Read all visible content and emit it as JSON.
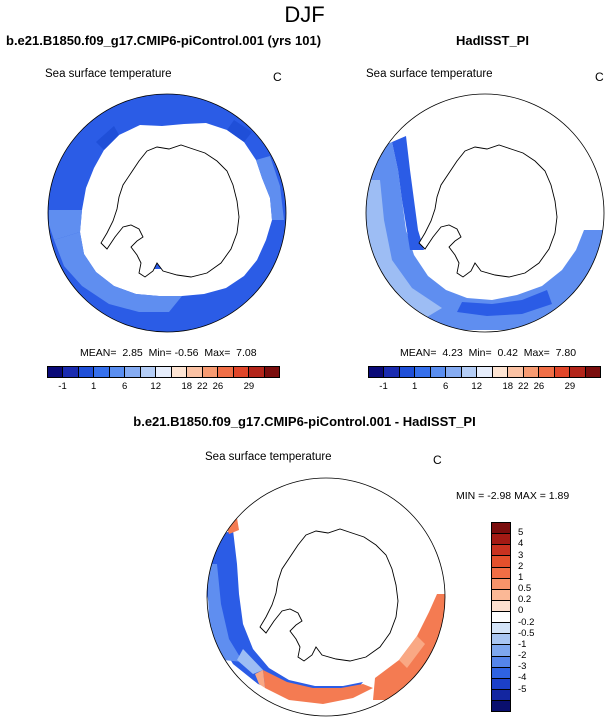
{
  "title": "DJF",
  "panels": {
    "model": {
      "title": "b.e21.B1850.f09_g17.CMIP6-piControl.001 (yrs 101)",
      "variable": "Sea surface temperature",
      "units": "C",
      "stats": {
        "mean_label": "MEAN=",
        "mean": "2.85",
        "min_label": "Min=",
        "min": "-0.56",
        "max_label": "Max=",
        "max": "7.08"
      }
    },
    "obs": {
      "title": "HadISST_PI",
      "variable": "Sea surface temperature",
      "units": "C",
      "stats": {
        "mean_label": "MEAN=",
        "mean": "4.23",
        "min_label": "Min=",
        "min": "0.42",
        "max_label": "Max=",
        "max": "7.80"
      }
    },
    "diff": {
      "title": "b.e21.B1850.f09_g17.CMIP6-piControl.001 - HadISST_PI",
      "variable": "Sea surface temperature",
      "units": "C",
      "stats": {
        "text": "MIN =  -2.98 MAX =  1.89"
      }
    }
  },
  "colorbars": {
    "sst": {
      "colors": [
        "#0a0a78",
        "#1a2bb0",
        "#1f4fd8",
        "#3670ec",
        "#5a8ef0",
        "#86acf2",
        "#b4cdf6",
        "#e6edfb",
        "#fde4d3",
        "#fbc2a4",
        "#f79b72",
        "#f06e46",
        "#e0462a",
        "#b3251a",
        "#7a0d0d"
      ],
      "labels": [
        {
          "after": 1,
          "text": "-1"
        },
        {
          "after": 3,
          "text": "1"
        },
        {
          "after": 5,
          "text": "6"
        },
        {
          "after": 7,
          "text": "12"
        },
        {
          "after": 9,
          "text": "18"
        },
        {
          "after": 10,
          "text": "22"
        },
        {
          "after": 11,
          "text": "26"
        },
        {
          "after": 13,
          "text": "29"
        }
      ]
    },
    "diff": {
      "colors_top_to_bottom": [
        "#7a0d0d",
        "#a31a14",
        "#c93220",
        "#e4502c",
        "#f26e45",
        "#f7936a",
        "#fbb896",
        "#fde0cf",
        "#ffffff",
        "#d4e4f8",
        "#a9c6f2",
        "#7ea7ee",
        "#5585ea",
        "#2f63e2",
        "#1c40c8",
        "#1326a0",
        "#0a0f6e"
      ],
      "labels_top_to_bottom": [
        "5",
        "4",
        "3",
        "2",
        "1",
        "0.5",
        "0.2",
        "0",
        "-0.2",
        "-0.5",
        "-1",
        "-2",
        "-3",
        "-4",
        "-5"
      ]
    }
  },
  "colors": {
    "land": "#ffffff",
    "coast": "#000000",
    "ocean_blue": "#2b5ce6",
    "ocean_mid": "#5f8ef0",
    "ocean_light": "#9dbdf4",
    "warm": "#f47b52",
    "warm_light": "#f9a884"
  }
}
